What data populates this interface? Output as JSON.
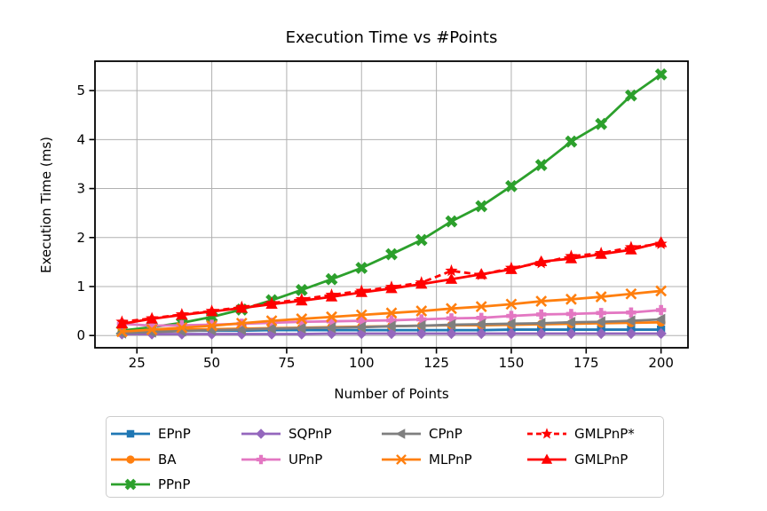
{
  "figure": {
    "background": "#ffffff"
  },
  "chart_data": {
    "type": "line",
    "title": "Execution Time vs #Points",
    "xlabel": "Number of Points",
    "ylabel": "Execution Time (ms)",
    "x": [
      20,
      30,
      40,
      50,
      60,
      70,
      80,
      90,
      100,
      110,
      120,
      130,
      140,
      150,
      160,
      170,
      180,
      190,
      200
    ],
    "xticks": [
      25,
      50,
      75,
      100,
      125,
      150,
      175,
      200
    ],
    "yticks": [
      0,
      1,
      2,
      3,
      4,
      5
    ],
    "xlim": [
      11,
      209
    ],
    "ylim": [
      -0.25,
      5.6
    ],
    "grid": true,
    "grid_color": "#b0b0b0",
    "legend": {
      "position": "below-chart",
      "columns": 4
    },
    "series": [
      {
        "name": "EPnP",
        "color": "#1f77b4",
        "marker": "square",
        "linestyle": "solid",
        "legend_col": 0,
        "legend_row": 0,
        "values": [
          0.1,
          0.1,
          0.1,
          0.1,
          0.1,
          0.11,
          0.11,
          0.11,
          0.11,
          0.11,
          0.11,
          0.11,
          0.11,
          0.12,
          0.12,
          0.12,
          0.12,
          0.12,
          0.12
        ]
      },
      {
        "name": "BA",
        "color": "#ff7f0e",
        "marker": "circle",
        "linestyle": "solid",
        "legend_col": 0,
        "legend_row": 1,
        "values": [
          0.08,
          0.1,
          0.12,
          0.13,
          0.14,
          0.15,
          0.16,
          0.17,
          0.18,
          0.19,
          0.2,
          0.21,
          0.21,
          0.22,
          0.23,
          0.24,
          0.25,
          0.26,
          0.27
        ]
      },
      {
        "name": "PPnP",
        "color": "#2ca02c",
        "marker": "X",
        "linestyle": "solid",
        "legend_col": 0,
        "legend_row": 2,
        "values": [
          0.1,
          0.17,
          0.26,
          0.38,
          0.53,
          0.72,
          0.93,
          1.15,
          1.38,
          1.66,
          1.95,
          2.33,
          2.64,
          3.05,
          3.48,
          3.96,
          4.32,
          4.9,
          5.33
        ]
      },
      {
        "name": "SQPnP",
        "color": "#9467bd",
        "marker": "diamond",
        "linestyle": "solid",
        "legend_col": 1,
        "legend_row": 0,
        "values": [
          0.03,
          0.03,
          0.03,
          0.03,
          0.03,
          0.03,
          0.03,
          0.04,
          0.04,
          0.04,
          0.04,
          0.04,
          0.04,
          0.04,
          0.04,
          0.04,
          0.04,
          0.04,
          0.04
        ]
      },
      {
        "name": "UPnP",
        "color": "#e377c2",
        "marker": "plus",
        "linestyle": "solid",
        "legend_col": 1,
        "legend_row": 1,
        "values": [
          0.24,
          0.2,
          0.21,
          0.22,
          0.24,
          0.26,
          0.28,
          0.29,
          0.3,
          0.31,
          0.33,
          0.35,
          0.36,
          0.4,
          0.43,
          0.44,
          0.46,
          0.47,
          0.52
        ]
      },
      {
        "name": "CPnP",
        "color": "#7f7f7f",
        "marker": "tri-left",
        "linestyle": "solid",
        "legend_col": 2,
        "legend_row": 0,
        "values": [
          0.05,
          0.07,
          0.09,
          0.11,
          0.12,
          0.14,
          0.15,
          0.16,
          0.17,
          0.19,
          0.2,
          0.22,
          0.23,
          0.24,
          0.25,
          0.27,
          0.28,
          0.3,
          0.33
        ]
      },
      {
        "name": "MLPnP",
        "color": "#ff7f0e",
        "marker": "x",
        "linestyle": "solid",
        "legend_col": 2,
        "legend_row": 1,
        "values": [
          0.08,
          0.12,
          0.16,
          0.2,
          0.25,
          0.3,
          0.34,
          0.38,
          0.42,
          0.46,
          0.5,
          0.55,
          0.59,
          0.64,
          0.7,
          0.74,
          0.79,
          0.85,
          0.91
        ]
      },
      {
        "name": "GMLPnP*",
        "color": "#ff0000",
        "marker": "star",
        "linestyle": "dashed",
        "legend_col": 3,
        "legend_row": 0,
        "values": [
          0.28,
          0.35,
          0.43,
          0.5,
          0.58,
          0.66,
          0.74,
          0.83,
          0.91,
          0.99,
          1.08,
          1.32,
          1.24,
          1.38,
          1.48,
          1.62,
          1.68,
          1.8,
          1.87
        ]
      },
      {
        "name": "GMLPnP",
        "color": "#ff0000",
        "marker": "tri-up",
        "linestyle": "solid",
        "legend_col": 3,
        "legend_row": 1,
        "values": [
          0.24,
          0.34,
          0.42,
          0.49,
          0.56,
          0.64,
          0.71,
          0.79,
          0.88,
          0.96,
          1.05,
          1.15,
          1.25,
          1.35,
          1.51,
          1.57,
          1.66,
          1.75,
          1.9
        ]
      }
    ]
  }
}
